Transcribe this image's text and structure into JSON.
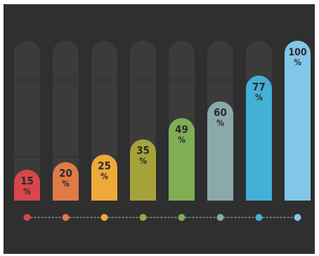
{
  "chart_data": {
    "type": "bar",
    "categories": [
      "",
      "",
      "",
      "",
      "",
      "",
      "",
      ""
    ],
    "values": [
      15,
      20,
      25,
      35,
      49,
      60,
      77,
      100
    ],
    "value_labels": [
      "15",
      "20",
      "25",
      "35",
      "49",
      "60",
      "77",
      "100"
    ],
    "unit_symbol": "%",
    "ylim": [
      0,
      100
    ],
    "grid": true,
    "legend": "none",
    "title": "",
    "xlabel": "",
    "ylabel": ""
  },
  "colors": {
    "background": "#2f2f2f",
    "track": "#3b3b3b",
    "gridline": "#2a2a2a",
    "label_text": "#2b2b2b",
    "dots_line": "#bfbfbf",
    "bars": [
      "#d8464c",
      "#df7b49",
      "#efa93a",
      "#a6a23a",
      "#7fae55",
      "#8aa9aa",
      "#44b0d6",
      "#82c7ea"
    ]
  }
}
